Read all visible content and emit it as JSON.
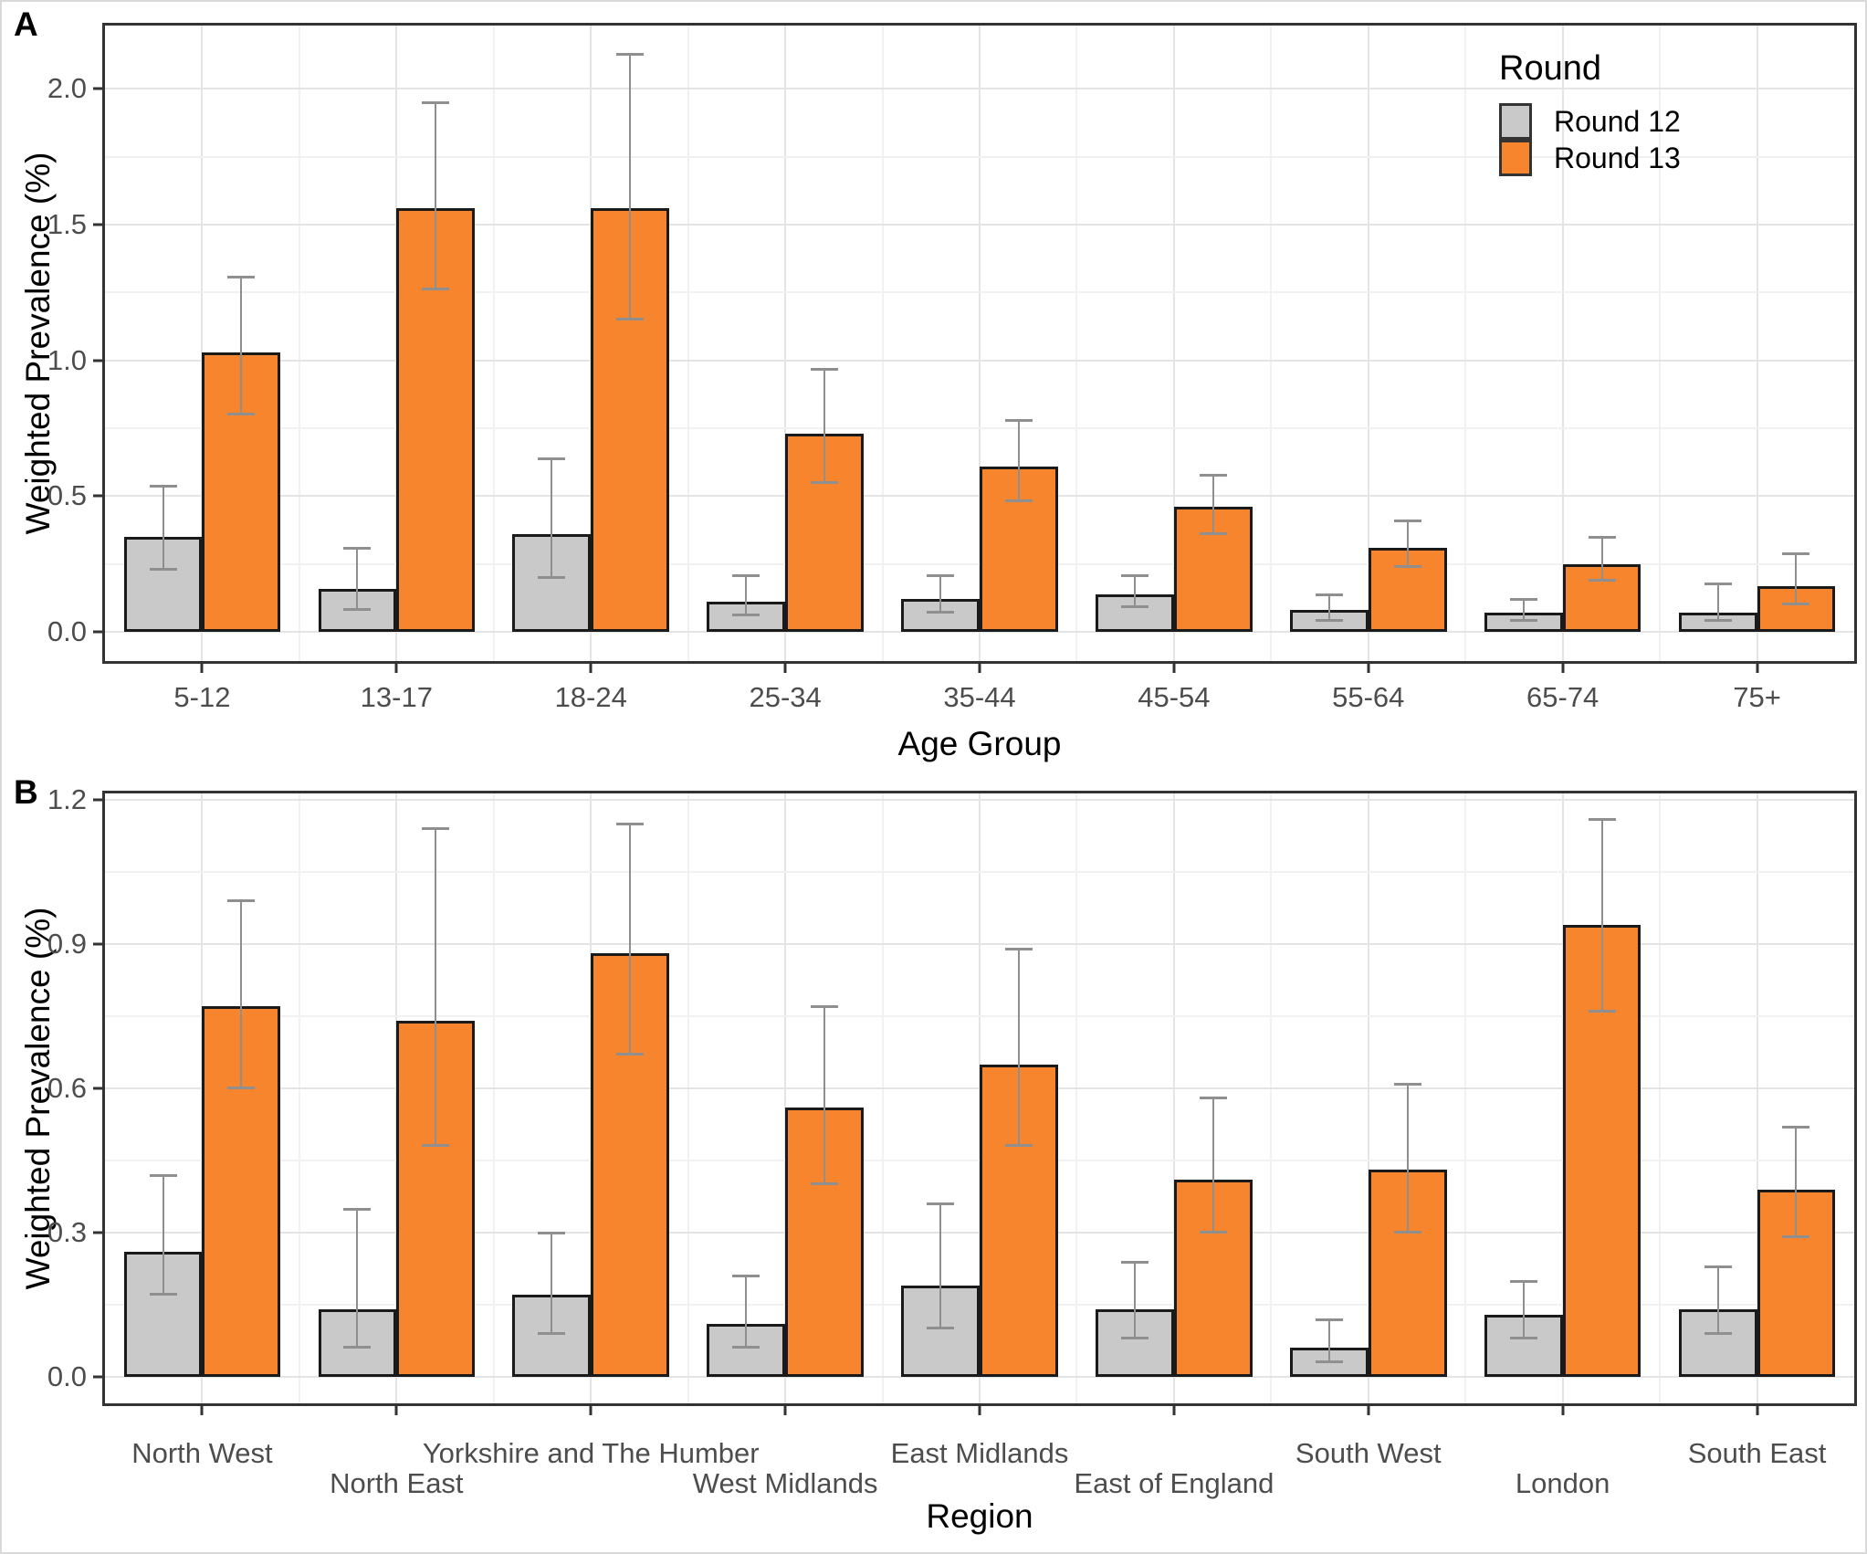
{
  "figure": {
    "panel_a_tag": "A",
    "panel_b_tag": "B"
  },
  "legend": {
    "title": "Round",
    "items": [
      {
        "label": "Round 12",
        "color": "#C9C9C9"
      },
      {
        "label": "Round 13",
        "color": "#F7852D"
      }
    ],
    "position": "top-right-inside-panel-A"
  },
  "colors": {
    "round12_fill": "#C9C9C9",
    "round13_fill": "#F7852D",
    "bar_stroke": "#1A1A1A",
    "error_bar": "#8F8F8F",
    "grid_major": "#E4E4E4",
    "grid_minor": "#F1F1F1",
    "panel_border": "#333333",
    "tick_label": "#4D4D4D"
  },
  "chart_data": [
    {
      "type": "bar",
      "panel": "A",
      "title": "",
      "xlabel": "Age Group",
      "ylabel": "Weighted Prevalence (%)",
      "grid": true,
      "legend_position": "top-right inside plot",
      "categories": [
        "5-12",
        "13-17",
        "18-24",
        "25-34",
        "35-44",
        "45-54",
        "55-64",
        "65-74",
        "75+"
      ],
      "label_rows": 1,
      "ylim": [
        -0.107,
        2.233
      ],
      "yticks": [
        0.0,
        0.5,
        1.0,
        1.5,
        2.0
      ],
      "ytick_labels": [
        "0.0",
        "0.5",
        "1.0",
        "1.5",
        "2.0"
      ],
      "yticks_minor": [
        0.25,
        0.75,
        1.25,
        1.75
      ],
      "series": [
        {
          "name": "Round 12",
          "color": "#C9C9C9",
          "values": [
            0.35,
            0.16,
            0.36,
            0.11,
            0.12,
            0.14,
            0.08,
            0.07,
            0.07
          ],
          "ci_low": [
            0.23,
            0.08,
            0.2,
            0.06,
            0.07,
            0.09,
            0.04,
            0.04,
            0.04
          ],
          "ci_high": [
            0.54,
            0.31,
            0.64,
            0.21,
            0.21,
            0.21,
            0.14,
            0.12,
            0.18
          ]
        },
        {
          "name": "Round 13",
          "color": "#F7852D",
          "values": [
            1.03,
            1.56,
            1.56,
            0.73,
            0.61,
            0.46,
            0.31,
            0.25,
            0.17
          ],
          "ci_low": [
            0.8,
            1.26,
            1.15,
            0.55,
            0.48,
            0.36,
            0.24,
            0.19,
            0.1
          ],
          "ci_high": [
            1.31,
            1.95,
            2.13,
            0.97,
            0.78,
            0.58,
            0.41,
            0.35,
            0.29
          ]
        }
      ]
    },
    {
      "type": "bar",
      "panel": "B",
      "title": "",
      "xlabel": "Region",
      "ylabel": "Weighted Prevalence (%)",
      "grid": true,
      "legend_position": "none",
      "categories": [
        "North West",
        "North East",
        "Yorkshire and The Humber",
        "West Midlands",
        "East Midlands",
        "East of England",
        "South West",
        "London",
        "South East"
      ],
      "label_rows": 2,
      "ylim": [
        -0.055,
        1.213
      ],
      "yticks": [
        0.0,
        0.3,
        0.6,
        0.9,
        1.2
      ],
      "ytick_labels": [
        "0.0",
        "0.3",
        "0.6",
        "0.9",
        "1.2"
      ],
      "yticks_minor": [
        0.15,
        0.45,
        0.75,
        1.05
      ],
      "series": [
        {
          "name": "Round 12",
          "color": "#C9C9C9",
          "values": [
            0.26,
            0.14,
            0.17,
            0.11,
            0.19,
            0.14,
            0.06,
            0.13,
            0.14
          ],
          "ci_low": [
            0.17,
            0.06,
            0.09,
            0.06,
            0.1,
            0.08,
            0.03,
            0.08,
            0.09
          ],
          "ci_high": [
            0.42,
            0.35,
            0.3,
            0.21,
            0.36,
            0.24,
            0.12,
            0.2,
            0.23
          ]
        },
        {
          "name": "Round 13",
          "color": "#F7852D",
          "values": [
            0.77,
            0.74,
            0.88,
            0.56,
            0.65,
            0.41,
            0.43,
            0.94,
            0.39
          ],
          "ci_low": [
            0.6,
            0.48,
            0.67,
            0.4,
            0.48,
            0.3,
            0.3,
            0.76,
            0.29
          ],
          "ci_high": [
            0.99,
            1.14,
            1.15,
            0.77,
            0.89,
            0.58,
            0.61,
            1.16,
            0.52
          ]
        }
      ]
    }
  ]
}
